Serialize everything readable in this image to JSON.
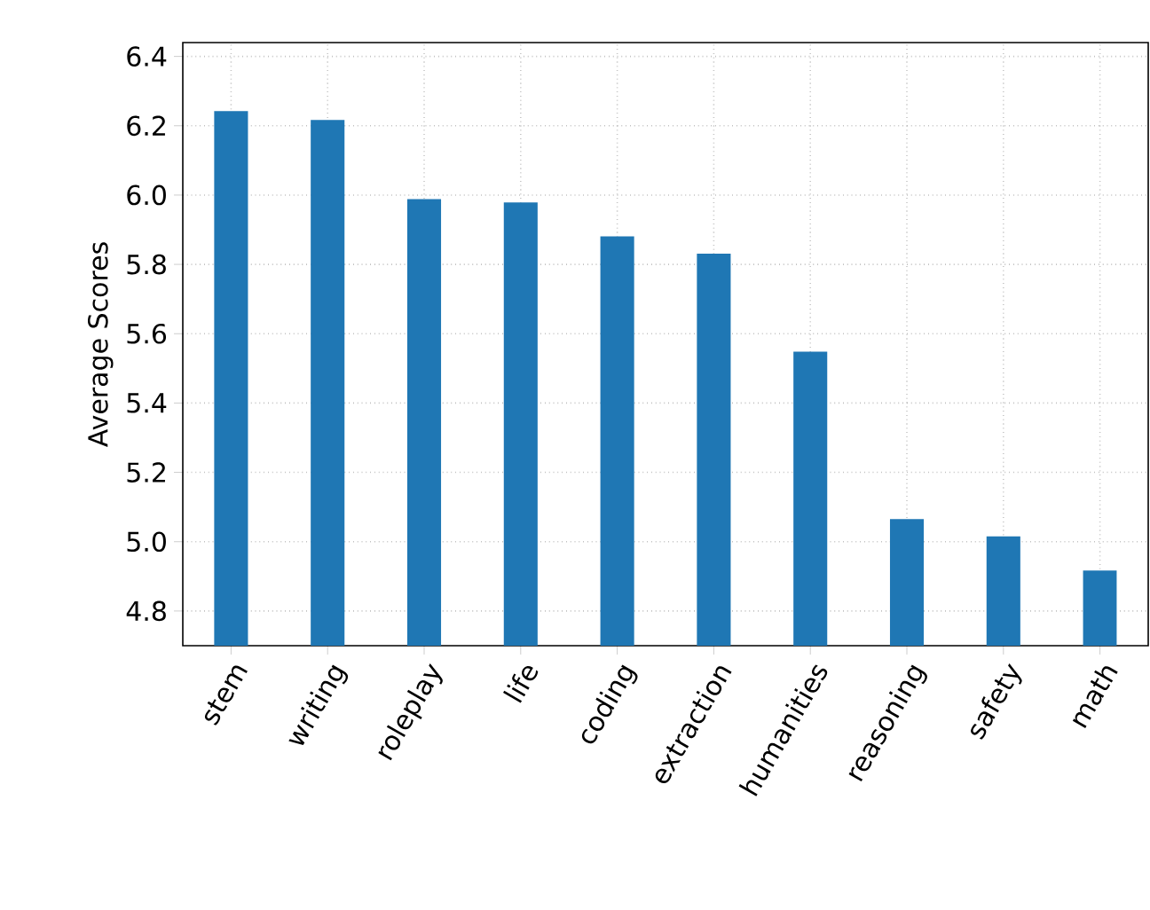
{
  "chart_data": {
    "type": "bar",
    "ylabel": "Average Scores",
    "categories": [
      "stem",
      "writing",
      "roleplay",
      "life",
      "coding",
      "extraction",
      "humanities",
      "reasoning",
      "safety",
      "math"
    ],
    "values": [
      6.242,
      6.217,
      5.988,
      5.979,
      5.881,
      5.831,
      5.548,
      5.065,
      5.015,
      4.917
    ],
    "color": "#1f77b4",
    "ylim": [
      4.7,
      6.44
    ],
    "yticks": [
      4.8,
      {
        "value": 5.0,
        "label": "5.0"
      },
      5.2,
      5.4,
      5.6,
      5.8,
      {
        "value": 6.0,
        "label": "6.0"
      },
      6.2,
      6.4
    ],
    "grid": true
  }
}
